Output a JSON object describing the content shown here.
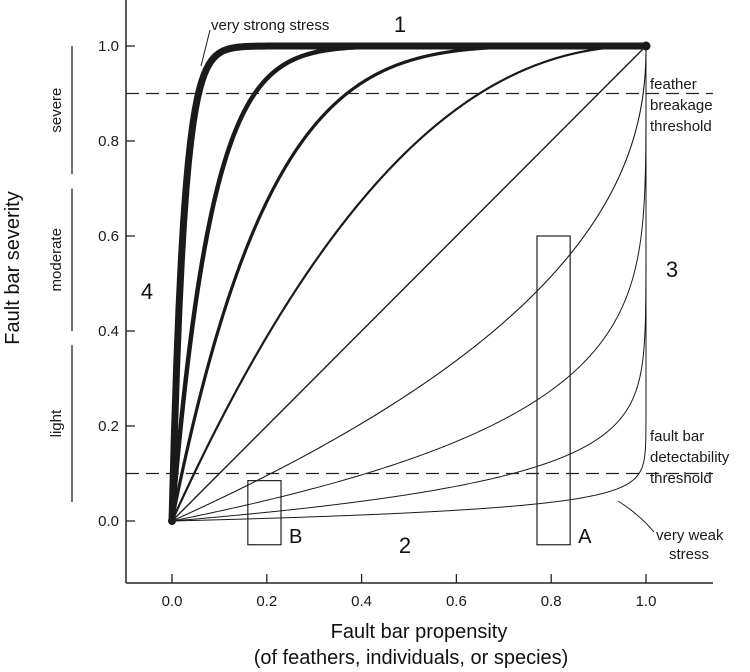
{
  "chart_data": {
    "type": "line",
    "title": "",
    "xlabel": "Fault bar propensity",
    "xlabel_sub": "(of feathers, individuals, or species)",
    "ylabel": "Fault bar severity",
    "xlim": [
      -0.1,
      1.1
    ],
    "ylim": [
      -0.1,
      1.05
    ],
    "x_ticks": [
      "0.0",
      "0.2",
      "0.4",
      "0.6",
      "0.8",
      "1.0"
    ],
    "y_ticks": [
      "0.0",
      "0.2",
      "0.4",
      "0.6",
      "0.8",
      "1.0"
    ],
    "grid": false,
    "legend": "none",
    "curve_exponents": [
      40,
      12,
      5,
      2.2,
      1,
      0.45,
      0.2,
      0.083,
      0.025
    ],
    "thresholds": [
      {
        "y": 0.9,
        "label": [
          "feather",
          "breakage",
          "threshold"
        ]
      },
      {
        "y": 0.1,
        "label": [
          "fault bar",
          "detectability",
          "threshold"
        ]
      }
    ],
    "severity_bands": [
      {
        "label": "severe",
        "from": 0.73,
        "to": 1.0
      },
      {
        "label": "moderate",
        "from": 0.4,
        "to": 0.7
      },
      {
        "label": "light",
        "from": 0.04,
        "to": 0.37
      }
    ],
    "boxes": [
      {
        "label": "A",
        "x0": 0.77,
        "x1": 0.84,
        "y0": -0.05,
        "y1": 0.6
      },
      {
        "label": "B",
        "x0": 0.16,
        "x1": 0.23,
        "y0": -0.05,
        "y1": 0.085
      }
    ],
    "region_labels": [
      "1",
      "2",
      "3",
      "4"
    ],
    "annotations": {
      "strong": "very strong stress",
      "weak": [
        "very weak",
        "stress"
      ]
    }
  }
}
